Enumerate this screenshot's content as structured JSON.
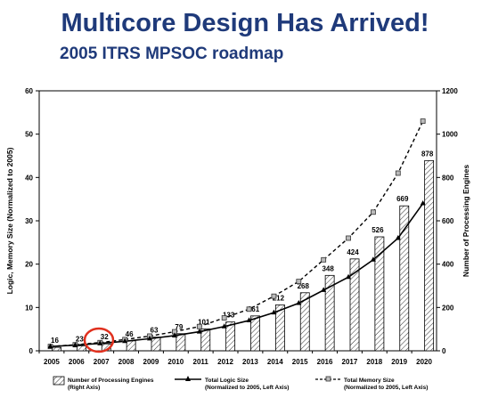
{
  "slide": {
    "title": "Multicore Design Has Arrived!",
    "subtitle": "2005 ITRS MPSOC roadmap"
  },
  "chart_data": {
    "type": "bar",
    "categories": [
      "2005",
      "2006",
      "2007",
      "2008",
      "2009",
      "2010",
      "2011",
      "2012",
      "2013",
      "2014",
      "2015",
      "2016",
      "2017",
      "2018",
      "2019",
      "2020"
    ],
    "ylabel_left": "Logic, Memory Size (Normalized to 2005)",
    "ylabel_right": "Number of Processing Engines",
    "ylim_left": [
      0,
      60
    ],
    "ylim_right": [
      0,
      1200
    ],
    "yticks_left": [
      "0",
      "10",
      "20",
      "30",
      "40",
      "50",
      "60"
    ],
    "yticks_right": [
      "0",
      "200",
      "400",
      "600",
      "800",
      "1000",
      "1200"
    ],
    "series": [
      {
        "name": "Number of Processing Engines",
        "name_line2": "(Right Axis)",
        "kind": "bar",
        "axis": "right",
        "values": [
          16,
          23,
          32,
          46,
          63,
          79,
          101,
          133,
          161,
          212,
          268,
          348,
          424,
          526,
          669,
          878
        ],
        "labels": [
          "16",
          "23",
          "32",
          "46",
          "63",
          "79",
          "101",
          "133",
          "161",
          "212",
          "268",
          "348",
          "424",
          "526",
          "669",
          "878"
        ]
      },
      {
        "name": "Total Logic Size",
        "name_line2": "(Normalized to 2005, Left Axis)",
        "kind": "line",
        "axis": "left",
        "values": [
          1,
          1.3,
          1.7,
          2.2,
          2.8,
          3.5,
          4.4,
          5.6,
          7,
          8.8,
          11,
          14,
          17,
          21,
          26,
          34
        ]
      },
      {
        "name": "Total Memory Size",
        "name_line2": "(Normalized to 2005, Left Axis)",
        "kind": "dashed-line",
        "axis": "left",
        "values": [
          1,
          1.4,
          1.9,
          2.6,
          3.4,
          4.4,
          5.6,
          7.6,
          9.6,
          12.6,
          16,
          21,
          26,
          32,
          41,
          53
        ]
      }
    ],
    "highlight": {
      "category": "2007",
      "marker": "red-circle"
    },
    "grid": false,
    "legend_position": "bottom"
  }
}
